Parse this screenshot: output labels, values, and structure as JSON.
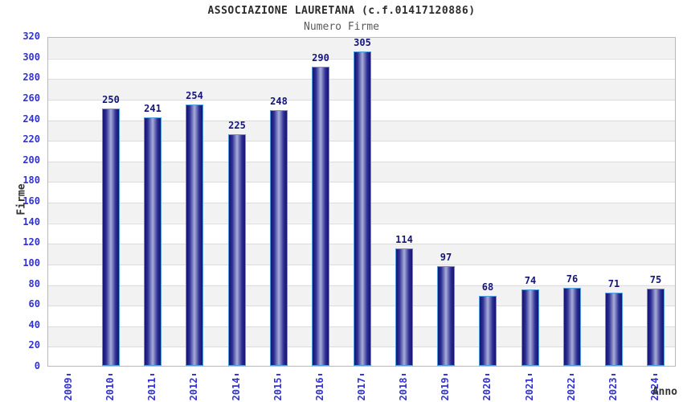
{
  "header": {
    "title": "ASSOCIAZIONE LAURETANA (c.f.01417120886)",
    "subtitle": "Numero Firme"
  },
  "axes": {
    "y_title": "Firme",
    "x_title": "Anno"
  },
  "colors": {
    "tick_label_blue": "#3232d2",
    "value_label_navy": "#15157d",
    "bar_edge_dark": "#141470",
    "bar_mid_dark": "#2e2e96",
    "bar_center_light": "#a8aed6",
    "bar_border_lightblue": "#4f9ce0",
    "band_gray": "#f2f2f2",
    "gridline_gray": "#dcdcdc",
    "plot_border_gray": "#b9b9b9",
    "title_dark": "#2b2b2b",
    "subtitle_gray": "#5a5a5a"
  },
  "chart_data": {
    "type": "bar",
    "title": "ASSOCIAZIONE LAURETANA (c.f.01417120886)",
    "subtitle": "Numero Firme",
    "xlabel": "Anno",
    "ylabel": "Firme",
    "categories": [
      "2009",
      "2010",
      "2011",
      "2012",
      "2014",
      "2015",
      "2016",
      "2017",
      "2018",
      "2019",
      "2020",
      "2021",
      "2022",
      "2023",
      "2024"
    ],
    "values": [
      0,
      250,
      241,
      254,
      225,
      248,
      290,
      305,
      114,
      97,
      68,
      74,
      76,
      71,
      75
    ],
    "ylim": [
      0,
      320
    ],
    "ytick_step": 20,
    "grid": true,
    "legend": "none",
    "bands": "alternating horizontal gray/white every 20 units",
    "bar_style": "vertical cylinder gradient, navy edges with light lavender center, light blue outline",
    "value_labels": "shown above each bar in navy bold"
  }
}
